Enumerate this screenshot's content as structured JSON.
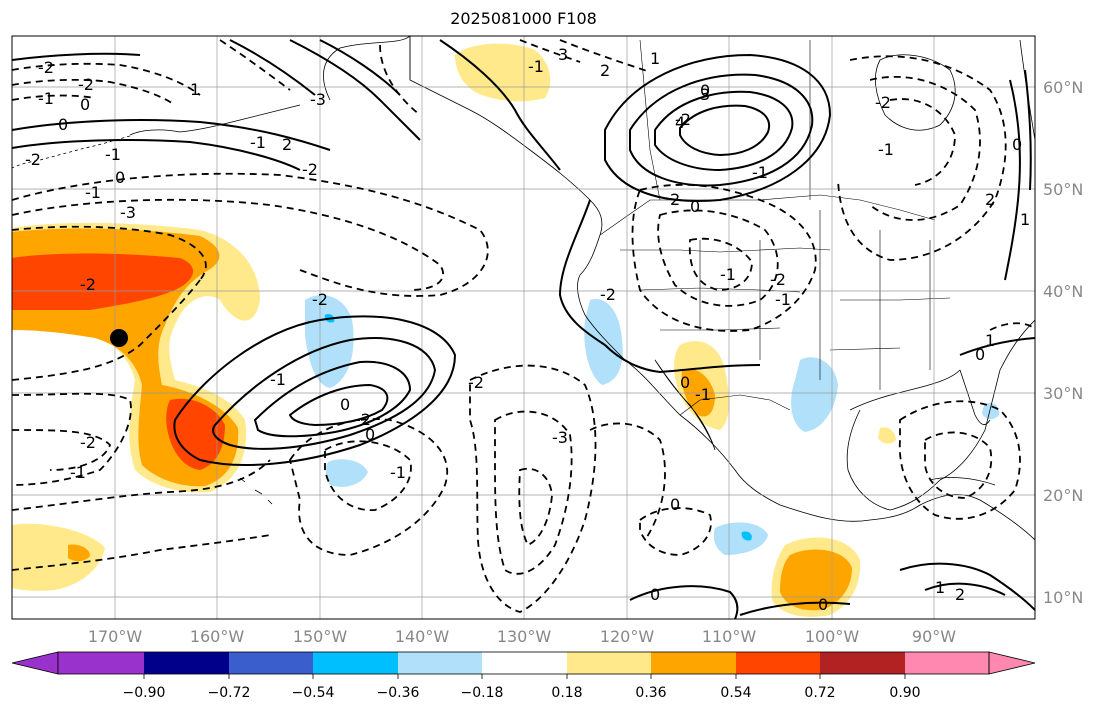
{
  "title": "2025081000 F108",
  "colors": {
    "ocean": "#ffffff",
    "land_border": "#000000",
    "grid": "#9a9a9a",
    "contour_positive": "#000000",
    "contour_negative": "#000000",
    "neg_09": "#9932cc",
    "neg_072": "#00008b",
    "neg_054": "#3a5fcd",
    "neg_036": "#00bfff",
    "neg_018": "#b0e0fa",
    "neutral": "#ffffff",
    "pos_018": "#ffe98a",
    "pos_036": "#ffa500",
    "pos_054": "#ff4500",
    "pos_072": "#b22222",
    "pos_09": "#ff88b0"
  },
  "longitude_labels": [
    "170°W",
    "160°W",
    "150°W",
    "140°W",
    "130°W",
    "120°W",
    "110°W",
    "100°W",
    "90°W"
  ],
  "latitude_labels": [
    "60°N",
    "50°N",
    "40°N",
    "30°N",
    "20°N",
    "10°N"
  ],
  "colorbar": {
    "tick_labels": [
      "−0.90",
      "−0.72",
      "−0.54",
      "−0.36",
      "−0.18",
      "0.18",
      "0.36",
      "0.54",
      "0.72",
      "0.90"
    ],
    "segments": [
      "#9932cc",
      "#00008b",
      "#3a5fcd",
      "#00bfff",
      "#b0e0fa",
      "#ffffff",
      "#ffe98a",
      "#ffa500",
      "#ff4500",
      "#b22222",
      "#ff88b0"
    ]
  },
  "contour_labels": [
    "-2",
    "-2",
    "-1",
    "0",
    "0",
    "-3",
    "-1",
    "-2",
    "-1",
    "0",
    "-2",
    "-1",
    "-3",
    "-2",
    "-1",
    "2",
    "1",
    "-2",
    "-1",
    "0",
    "-2",
    "0",
    "-1",
    "-2",
    "-3",
    "-2",
    "-1",
    "3",
    "2",
    "1",
    "0",
    "-2",
    "2",
    "0",
    "-1",
    "-1",
    "-2",
    "-1",
    "-2",
    "0",
    "-1",
    "0",
    "1",
    "0",
    "0",
    "0",
    "1",
    "2",
    "3",
    "4",
    "-2",
    "-1",
    "0",
    "2",
    "1"
  ],
  "marker": "black-dot"
}
